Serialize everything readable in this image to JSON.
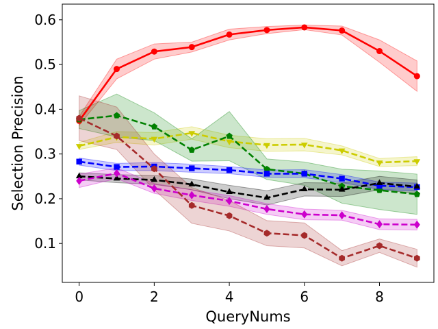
{
  "chart_data": {
    "type": "line",
    "title": "",
    "xlabel": "QueryNums",
    "ylabel": "Selection Precision",
    "xlim": [
      -0.45,
      9.45
    ],
    "ylim": [
      0.013,
      0.635
    ],
    "xticks": [
      0,
      2,
      4,
      6,
      8
    ],
    "yticks": [
      0.1,
      0.2,
      0.3,
      0.4,
      0.5,
      0.6
    ],
    "grid": false,
    "legend": "none",
    "x": [
      0,
      1,
      2,
      3,
      4,
      5,
      6,
      7,
      8,
      9
    ],
    "series": [
      {
        "color": "#ff0000",
        "line_style": "solid",
        "marker": "circle",
        "values": [
          0.374,
          0.49,
          0.529,
          0.539,
          0.567,
          0.577,
          0.583,
          0.576,
          0.53,
          0.474
        ],
        "lower": [
          0.364,
          0.468,
          0.512,
          0.528,
          0.555,
          0.569,
          0.578,
          0.566,
          0.505,
          0.44
        ],
        "upper": [
          0.384,
          0.512,
          0.546,
          0.55,
          0.579,
          0.585,
          0.588,
          0.586,
          0.555,
          0.508
        ]
      },
      {
        "color": "#cccc00",
        "line_style": "dashed",
        "marker": "triangle-down",
        "values": [
          0.318,
          0.338,
          0.334,
          0.347,
          0.328,
          0.32,
          0.321,
          0.308,
          0.281,
          0.284
        ],
        "lower": [
          0.31,
          0.326,
          0.32,
          0.333,
          0.314,
          0.306,
          0.307,
          0.298,
          0.272,
          0.274
        ],
        "upper": [
          0.326,
          0.35,
          0.348,
          0.361,
          0.342,
          0.334,
          0.335,
          0.318,
          0.29,
          0.294
        ]
      },
      {
        "color": "#008000",
        "line_style": "dashed",
        "marker": "pentagon",
        "values": [
          0.377,
          0.386,
          0.361,
          0.309,
          0.34,
          0.266,
          0.256,
          0.228,
          0.219,
          0.21
        ],
        "lower": [
          0.357,
          0.338,
          0.33,
          0.284,
          0.285,
          0.243,
          0.23,
          0.19,
          0.176,
          0.165
        ],
        "upper": [
          0.397,
          0.434,
          0.392,
          0.334,
          0.395,
          0.289,
          0.282,
          0.266,
          0.262,
          0.255
        ]
      },
      {
        "color": "#0000ff",
        "line_style": "dashed",
        "marker": "square",
        "values": [
          0.283,
          0.271,
          0.272,
          0.268,
          0.264,
          0.256,
          0.256,
          0.245,
          0.229,
          0.226
        ],
        "lower": [
          0.275,
          0.263,
          0.263,
          0.259,
          0.256,
          0.248,
          0.247,
          0.236,
          0.221,
          0.217
        ],
        "upper": [
          0.291,
          0.279,
          0.281,
          0.277,
          0.272,
          0.264,
          0.265,
          0.254,
          0.237,
          0.235
        ]
      },
      {
        "color": "#000000",
        "line_style": "dashed",
        "marker": "triangle-up",
        "values": [
          0.25,
          0.245,
          0.242,
          0.232,
          0.215,
          0.202,
          0.221,
          0.22,
          0.235,
          0.227
        ],
        "lower": [
          0.242,
          0.236,
          0.232,
          0.22,
          0.2,
          0.186,
          0.206,
          0.205,
          0.22,
          0.212
        ],
        "upper": [
          0.258,
          0.254,
          0.252,
          0.244,
          0.23,
          0.218,
          0.236,
          0.235,
          0.25,
          0.242
        ]
      },
      {
        "color": "#cc00cc",
        "line_style": "dashed",
        "marker": "diamond",
        "values": [
          0.24,
          0.257,
          0.223,
          0.208,
          0.195,
          0.177,
          0.165,
          0.163,
          0.143,
          0.142
        ],
        "lower": [
          0.225,
          0.245,
          0.212,
          0.196,
          0.183,
          0.165,
          0.153,
          0.152,
          0.131,
          0.13
        ],
        "upper": [
          0.255,
          0.269,
          0.234,
          0.22,
          0.207,
          0.189,
          0.177,
          0.174,
          0.155,
          0.154
        ]
      },
      {
        "color": "#a52a2a",
        "line_style": "dashed",
        "marker": "hexagon",
        "values": [
          0.38,
          0.34,
          0.267,
          0.185,
          0.162,
          0.123,
          0.118,
          0.067,
          0.095,
          0.067
        ],
        "lower": [
          0.33,
          0.31,
          0.22,
          0.145,
          0.128,
          0.095,
          0.09,
          0.05,
          0.08,
          0.047
        ],
        "upper": [
          0.43,
          0.405,
          0.3,
          0.225,
          0.196,
          0.151,
          0.146,
          0.084,
          0.11,
          0.087
        ]
      }
    ]
  }
}
